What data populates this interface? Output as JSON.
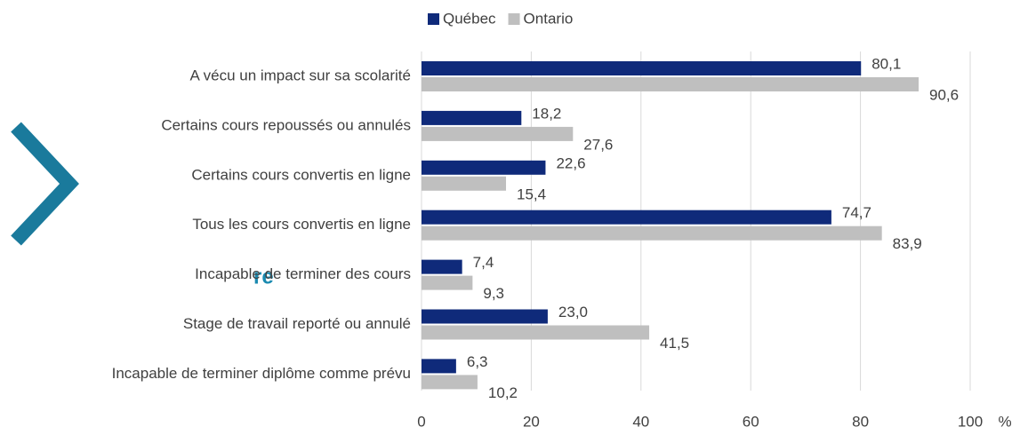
{
  "logo_text": "re",
  "chart_data": {
    "type": "hbar",
    "categories": [
      "A vécu un impact sur sa scolarité",
      "Certains cours repoussés ou annulés",
      "Certains cours convertis en ligne",
      "Tous les cours convertis en ligne",
      "Incapable de terminer des cours",
      "Stage de travail reporté ou annulé",
      "Incapable de terminer diplôme comme prévu"
    ],
    "series": [
      {
        "name": "Québec",
        "color": "#0f2a7a",
        "values": [
          80.1,
          18.2,
          22.6,
          74.7,
          7.4,
          23.0,
          6.3
        ],
        "value_labels": [
          "80,1",
          "18,2",
          "22,6",
          "74,7",
          "7,4",
          "23,0",
          "6,3"
        ]
      },
      {
        "name": "Ontario",
        "color": "#bfbfbf",
        "values": [
          90.6,
          27.6,
          15.4,
          83.9,
          9.3,
          41.5,
          10.2
        ],
        "value_labels": [
          "90,6",
          "27,6",
          "15,4",
          "83,9",
          "9,3",
          "41,5",
          "10,2"
        ]
      }
    ],
    "x_label": "%",
    "xlim": [
      0,
      100
    ],
    "xticks": [
      0,
      20,
      40,
      60,
      80,
      100
    ],
    "grid": true,
    "legend": "top"
  }
}
